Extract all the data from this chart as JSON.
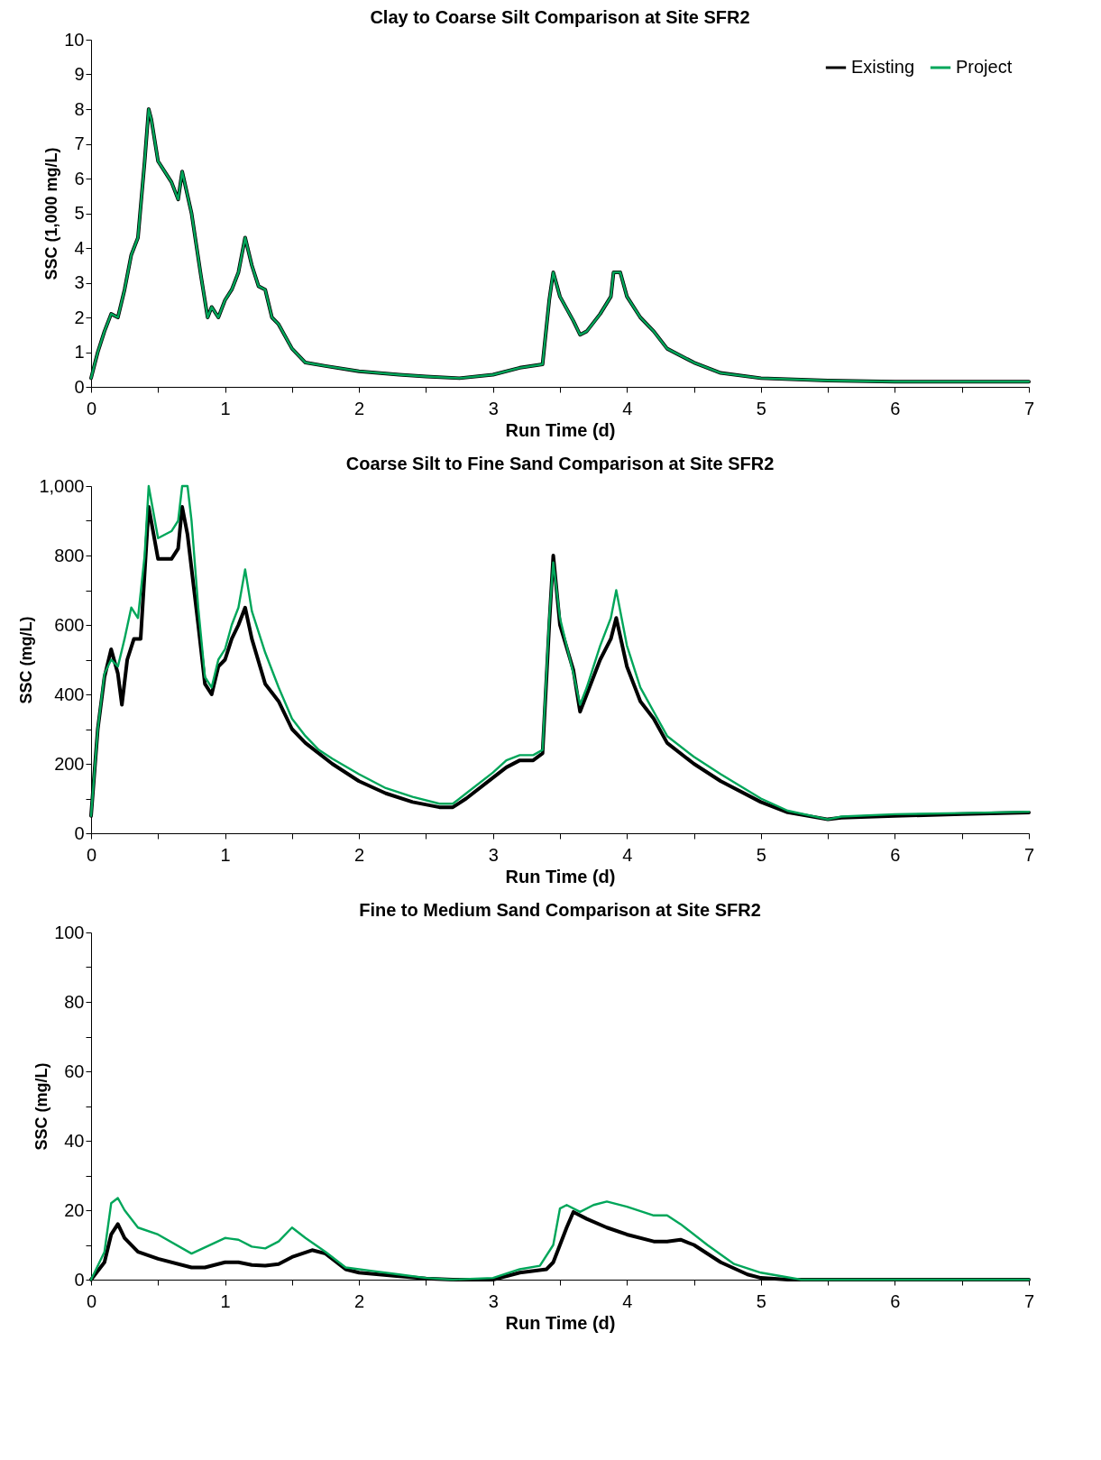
{
  "chart_data": [
    {
      "type": "line",
      "title": "Clay to Coarse Silt Comparison at Site SFR2",
      "xlabel": "Run Time (d)",
      "ylabel": "SSC (1,000 mg/L)",
      "xlim": [
        0,
        7
      ],
      "ylim": [
        0,
        10
      ],
      "xticks": [
        0,
        {
          "value": 0.5,
          "label": null
        },
        1,
        {
          "value": 1.5,
          "label": null
        },
        2,
        {
          "value": 2.5,
          "label": null
        },
        3,
        {
          "value": 3.5,
          "label": null
        },
        4,
        {
          "value": 4.5,
          "label": null
        },
        5,
        {
          "value": 5.5,
          "label": null
        },
        6,
        {
          "value": 6.5,
          "label": null
        },
        7
      ],
      "yticks": [
        0,
        1,
        2,
        3,
        4,
        5,
        6,
        7,
        8,
        9,
        10
      ],
      "grid": false,
      "legend": "top right",
      "marker": "none",
      "line_style": "solid",
      "series": [
        {
          "name": "Existing",
          "color": "#000000",
          "x": [
            0,
            0.05,
            0.1,
            0.15,
            0.2,
            0.25,
            0.3,
            0.35,
            0.4,
            0.43,
            0.45,
            0.5,
            0.6,
            0.65,
            0.68,
            0.75,
            0.82,
            0.87,
            0.9,
            0.95,
            1.0,
            1.05,
            1.1,
            1.15,
            1.2,
            1.25,
            1.3,
            1.35,
            1.4,
            1.5,
            1.6,
            1.75,
            2.0,
            2.3,
            2.5,
            2.75,
            3.0,
            3.2,
            3.37,
            3.42,
            3.45,
            3.5,
            3.6,
            3.65,
            3.7,
            3.8,
            3.88,
            3.9,
            3.95,
            4.0,
            4.1,
            4.2,
            4.3,
            4.5,
            4.7,
            5.0,
            5.5,
            6,
            7
          ],
          "values": [
            0.25,
            1.0,
            1.6,
            2.1,
            2.0,
            2.8,
            3.8,
            4.3,
            6.5,
            8.0,
            7.7,
            6.5,
            5.9,
            5.4,
            6.2,
            5.0,
            3.2,
            2.0,
            2.3,
            2.0,
            2.5,
            2.8,
            3.3,
            4.3,
            3.5,
            2.9,
            2.8,
            2.0,
            1.8,
            1.1,
            0.7,
            0.6,
            0.45,
            0.35,
            0.3,
            0.25,
            0.35,
            0.55,
            0.65,
            2.5,
            3.3,
            2.6,
            1.9,
            1.5,
            1.6,
            2.1,
            2.6,
            3.3,
            3.3,
            2.6,
            2.0,
            1.6,
            1.1,
            0.7,
            0.4,
            0.25,
            0.18,
            0.15,
            0.15
          ]
        },
        {
          "name": "Project",
          "color": "#00a65a",
          "x": [
            0,
            0.05,
            0.1,
            0.15,
            0.2,
            0.25,
            0.3,
            0.35,
            0.4,
            0.43,
            0.45,
            0.5,
            0.6,
            0.65,
            0.68,
            0.75,
            0.82,
            0.87,
            0.9,
            0.95,
            1.0,
            1.05,
            1.1,
            1.15,
            1.2,
            1.25,
            1.3,
            1.35,
            1.4,
            1.5,
            1.6,
            1.75,
            2.0,
            2.3,
            2.5,
            2.75,
            3.0,
            3.2,
            3.37,
            3.42,
            3.45,
            3.5,
            3.6,
            3.65,
            3.7,
            3.8,
            3.88,
            3.9,
            3.95,
            4.0,
            4.1,
            4.2,
            4.3,
            4.5,
            4.7,
            5.0,
            5.5,
            6,
            7
          ],
          "values": [
            0.25,
            1.0,
            1.6,
            2.1,
            2.0,
            2.8,
            3.8,
            4.3,
            6.5,
            8.0,
            7.7,
            6.5,
            5.9,
            5.4,
            6.2,
            5.0,
            3.2,
            2.0,
            2.3,
            2.0,
            2.5,
            2.8,
            3.3,
            4.3,
            3.5,
            2.9,
            2.8,
            2.0,
            1.8,
            1.1,
            0.7,
            0.6,
            0.45,
            0.35,
            0.3,
            0.25,
            0.35,
            0.55,
            0.65,
            2.5,
            3.3,
            2.6,
            1.9,
            1.5,
            1.6,
            2.1,
            2.6,
            3.3,
            3.3,
            2.6,
            2.0,
            1.6,
            1.1,
            0.7,
            0.4,
            0.25,
            0.18,
            0.15,
            0.15
          ]
        }
      ]
    },
    {
      "type": "line",
      "title": "Coarse Silt to Fine Sand Comparison at Site SFR2",
      "xlabel": "Run Time (d)",
      "ylabel": "SSC (mg/L)",
      "xlim": [
        0,
        7
      ],
      "ylim": [
        0,
        1000
      ],
      "xticks": [
        0,
        {
          "value": 0.5,
          "label": null
        },
        1,
        {
          "value": 1.5,
          "label": null
        },
        2,
        {
          "value": 2.5,
          "label": null
        },
        3,
        {
          "value": 3.5,
          "label": null
        },
        4,
        {
          "value": 4.5,
          "label": null
        },
        5,
        {
          "value": 5.5,
          "label": null
        },
        6,
        {
          "value": 6.5,
          "label": null
        },
        7
      ],
      "yticks": [
        0,
        {
          "value": 100,
          "label": null
        },
        200,
        {
          "value": 300,
          "label": null
        },
        400,
        {
          "value": 500,
          "label": null
        },
        600,
        {
          "value": 700,
          "label": null
        },
        800,
        {
          "value": 900,
          "label": null
        },
        {
          "value": 1000,
          "label": "1,000"
        }
      ],
      "grid": false,
      "legend": "top right",
      "marker": "none",
      "line_style": "solid",
      "series": [
        {
          "name": "Existing",
          "color": "#000000",
          "x": [
            0,
            0.05,
            0.1,
            0.15,
            0.2,
            0.23,
            0.27,
            0.32,
            0.37,
            0.43,
            0.5,
            0.6,
            0.65,
            0.68,
            0.72,
            0.8,
            0.85,
            0.9,
            0.95,
            1.0,
            1.05,
            1.1,
            1.15,
            1.2,
            1.3,
            1.4,
            1.5,
            1.6,
            1.7,
            1.8,
            2.0,
            2.2,
            2.4,
            2.6,
            2.7,
            2.8,
            3.0,
            3.1,
            3.2,
            3.3,
            3.37,
            3.42,
            3.45,
            3.5,
            3.6,
            3.65,
            3.7,
            3.8,
            3.88,
            3.92,
            4.0,
            4.1,
            4.2,
            4.3,
            4.5,
            4.7,
            5.0,
            5.2,
            5.5,
            5.6,
            6,
            6.5,
            7
          ],
          "values": [
            50,
            300,
            450,
            530,
            460,
            370,
            500,
            560,
            560,
            940,
            790,
            790,
            820,
            940,
            860,
            600,
            430,
            400,
            480,
            500,
            560,
            600,
            650,
            560,
            430,
            380,
            300,
            260,
            230,
            200,
            150,
            115,
            90,
            75,
            75,
            100,
            160,
            190,
            210,
            210,
            230,
            600,
            800,
            600,
            470,
            350,
            400,
            500,
            560,
            620,
            480,
            380,
            330,
            260,
            200,
            150,
            90,
            60,
            40,
            45,
            50,
            55,
            60
          ]
        },
        {
          "name": "Project",
          "color": "#00a65a",
          "x": [
            0,
            0.05,
            0.1,
            0.15,
            0.2,
            0.25,
            0.3,
            0.35,
            0.4,
            0.43,
            0.5,
            0.6,
            0.65,
            0.68,
            0.72,
            0.75,
            0.8,
            0.85,
            0.9,
            0.95,
            1.0,
            1.05,
            1.1,
            1.15,
            1.2,
            1.3,
            1.4,
            1.5,
            1.6,
            1.7,
            1.8,
            2.0,
            2.2,
            2.4,
            2.6,
            2.7,
            2.8,
            3.0,
            3.1,
            3.2,
            3.3,
            3.37,
            3.42,
            3.45,
            3.5,
            3.6,
            3.65,
            3.7,
            3.8,
            3.88,
            3.92,
            4.0,
            4.1,
            4.2,
            4.3,
            4.5,
            4.7,
            5.0,
            5.2,
            5.5,
            5.6,
            6,
            6.5,
            7
          ],
          "values": [
            50,
            300,
            460,
            500,
            480,
            560,
            650,
            620,
            800,
            1000,
            850,
            870,
            900,
            1000,
            1000,
            900,
            650,
            450,
            420,
            500,
            530,
            600,
            650,
            760,
            640,
            520,
            420,
            330,
            280,
            240,
            215,
            170,
            130,
            105,
            85,
            85,
            115,
            175,
            210,
            225,
            225,
            240,
            620,
            780,
            620,
            460,
            370,
            420,
            540,
            620,
            700,
            540,
            420,
            350,
            280,
            220,
            170,
            100,
            65,
            40,
            48,
            55,
            58,
            62
          ]
        }
      ]
    },
    {
      "type": "line",
      "title": "Fine to Medium Sand Comparison at Site SFR2",
      "xlabel": "Run Time (d)",
      "ylabel": "SSC (mg/L)",
      "xlim": [
        0,
        7
      ],
      "ylim": [
        0,
        100
      ],
      "xticks": [
        0,
        {
          "value": 0.5,
          "label": null
        },
        1,
        {
          "value": 1.5,
          "label": null
        },
        2,
        {
          "value": 2.5,
          "label": null
        },
        3,
        {
          "value": 3.5,
          "label": null
        },
        4,
        {
          "value": 4.5,
          "label": null
        },
        5,
        {
          "value": 5.5,
          "label": null
        },
        6,
        {
          "value": 6.5,
          "label": null
        },
        7
      ],
      "yticks": [
        0,
        {
          "value": 10,
          "label": null
        },
        20,
        {
          "value": 30,
          "label": null
        },
        40,
        {
          "value": 50,
          "label": null
        },
        60,
        {
          "value": 70,
          "label": null
        },
        80,
        {
          "value": 90,
          "label": null
        },
        100
      ],
      "grid": false,
      "legend": "top right",
      "marker": "none",
      "line_style": "solid",
      "series": [
        {
          "name": "Existing",
          "color": "#000000",
          "x": [
            0,
            0.1,
            0.15,
            0.2,
            0.25,
            0.35,
            0.5,
            0.75,
            0.85,
            1.0,
            1.1,
            1.2,
            1.3,
            1.4,
            1.5,
            1.65,
            1.75,
            1.9,
            2.0,
            2.3,
            2.5,
            2.7,
            3.0,
            3.2,
            3.4,
            3.45,
            3.55,
            3.6,
            3.7,
            3.85,
            4.0,
            4.2,
            4.3,
            4.4,
            4.5,
            4.7,
            4.9,
            5.0,
            5.2,
            7
          ],
          "values": [
            0,
            5,
            13,
            16,
            12,
            8,
            6,
            3.5,
            3.5,
            5,
            5,
            4.2,
            4,
            4.5,
            6.5,
            8.5,
            7.5,
            3,
            2,
            1,
            0.3,
            0,
            0,
            2,
            3,
            5,
            15,
            19.5,
            17.5,
            15,
            13,
            11,
            11,
            11.5,
            10,
            5,
            1.5,
            0.5,
            0,
            0
          ]
        },
        {
          "name": "Project",
          "color": "#00a65a",
          "x": [
            0,
            0.1,
            0.15,
            0.2,
            0.25,
            0.35,
            0.5,
            0.75,
            1.0,
            1.1,
            1.2,
            1.3,
            1.4,
            1.5,
            1.6,
            1.75,
            1.9,
            2.1,
            2.3,
            2.5,
            2.7,
            3.0,
            3.2,
            3.35,
            3.45,
            3.5,
            3.55,
            3.65,
            3.75,
            3.85,
            4.0,
            4.2,
            4.3,
            4.4,
            4.6,
            4.8,
            5.0,
            5.3,
            7
          ],
          "values": [
            0,
            8,
            22,
            23.5,
            20,
            15,
            13,
            7.5,
            12,
            11.5,
            9.5,
            9,
            11,
            15,
            12,
            8,
            3.5,
            2.5,
            1.5,
            0.5,
            0,
            0.5,
            3,
            4,
            10,
            20.5,
            21.5,
            19.5,
            21.5,
            22.5,
            21,
            18.5,
            18.5,
            16,
            10,
            4.5,
            2,
            0,
            0
          ]
        }
      ]
    }
  ]
}
